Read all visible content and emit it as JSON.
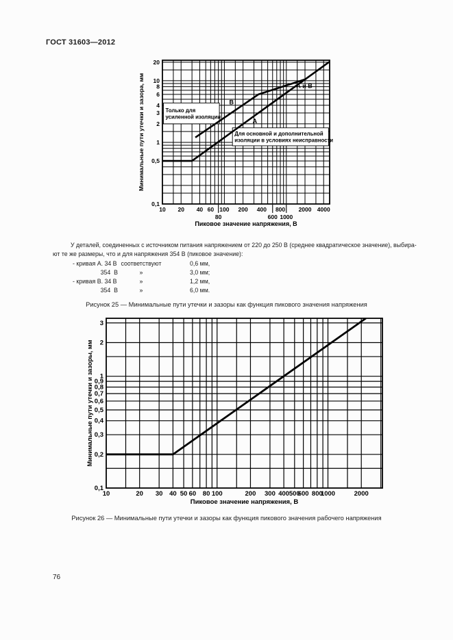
{
  "page": {
    "header": "ГОСТ 31603—2012",
    "page_number": "76",
    "paragraph": {
      "line1": "У деталей, соединенных с источником питания напряжением от 220 до 250 В (среднее квадратическое значение), выбира-",
      "line2": "ют те же размеры, что и для напряжения 354 В (пиковое значение):"
    },
    "list": [
      {
        "c1": "- кривая А. 34 В",
        "c2": "соответствуют",
        "c3": "0,6 мм,"
      },
      {
        "c1": "354  В",
        "c2": "»",
        "c3": "3,0 мм;"
      },
      {
        "c1": "- кривая В. 34 В",
        "c2": "»",
        "c3": "1,2 мм,"
      },
      {
        "c1": "354  В",
        "c2": "»",
        "c3": "6,0 мм."
      }
    ],
    "figure25_caption": "Рисунок 25 — Минимальные пути утечки и зазоры как функция пикового значения напряжения",
    "figure26_caption": "Рисунок 26 — Минимальные пути утечки и зазоры как функция пикового значения рабочего напряжения"
  },
  "chart_data": [
    {
      "type": "line",
      "title": "",
      "xlabel": "Пиковое значение напряжения, В",
      "ylabel": "Минимальные пути утечки и зазора, мм",
      "x_scale": "log",
      "y_scale": "log",
      "xlim": [
        10,
        5000
      ],
      "ylim": [
        0.1,
        21.5
      ],
      "grid": true,
      "x_ticks": [
        [
          10,
          "10",
          1
        ],
        [
          20,
          "20",
          1
        ],
        [
          40,
          "40",
          1
        ],
        [
          60,
          "60",
          1
        ],
        [
          80,
          "80",
          2
        ],
        [
          100,
          "100",
          1
        ],
        [
          200,
          "200",
          1
        ],
        [
          400,
          "400",
          1
        ],
        [
          600,
          "600",
          2
        ],
        [
          800,
          "800",
          1
        ],
        [
          1000,
          "1000",
          2
        ],
        [
          2000,
          "2000",
          1
        ],
        [
          4000,
          "4000",
          1
        ]
      ],
      "y_ticks": [
        [
          20,
          "20"
        ],
        [
          10,
          "10"
        ],
        [
          8,
          "8"
        ],
        [
          6,
          "6"
        ],
        [
          4,
          "4"
        ],
        [
          3,
          "3"
        ],
        [
          2,
          "2"
        ],
        [
          1,
          "1"
        ],
        [
          0.5,
          "0,5"
        ],
        [
          0.1,
          "0,1"
        ]
      ],
      "series": [
        {
          "name": "А",
          "points": [
            [
              10,
              0.5
            ],
            [
              30,
              0.5
            ],
            [
              354,
              3.0
            ],
            [
              2000,
              10.5
            ],
            [
              5000,
              20.4
            ]
          ]
        },
        {
          "name": "В",
          "points": [
            [
              34,
              1.2
            ],
            [
              354,
              6.0
            ],
            [
              2000,
              10.5
            ]
          ]
        }
      ],
      "labels": [
        {
          "x": 130,
          "y": 4.15,
          "text": "В"
        },
        {
          "x": 310,
          "y": 2.05,
          "text": "А"
        },
        {
          "x": 1950,
          "y": 7.6,
          "text": "А и В"
        }
      ],
      "boxes": [
        {
          "x": [
            10.4,
            83
          ],
          "y": [
            2.0,
            4.35
          ],
          "lines": [
            "Только для",
            "усиленной изоляции"
          ]
        },
        {
          "x": [
            135,
            4800
          ],
          "y": [
            0.88,
            1.72
          ],
          "lines": [
            "Для основной и дополнительной",
            "изоляции в условиях неисправности"
          ]
        }
      ]
    },
    {
      "type": "line",
      "title": "",
      "xlabel": "Пиковое значение напряжения, В",
      "ylabel": "Минимальные пути утечки и зазоры, мм",
      "x_scale": "log",
      "y_scale": "log",
      "xlim": [
        10,
        3100
      ],
      "ylim": [
        0.1,
        3.3
      ],
      "grid": true,
      "x_ticks": [
        [
          10,
          "10",
          1
        ],
        [
          20,
          "20",
          1
        ],
        [
          30,
          "30",
          1
        ],
        [
          40,
          "40",
          1
        ],
        [
          50,
          "50",
          1
        ],
        [
          60,
          "60",
          1
        ],
        [
          80,
          "80",
          1
        ],
        [
          100,
          "100",
          1
        ],
        [
          200,
          "200",
          1
        ],
        [
          300,
          "300",
          1
        ],
        [
          400,
          "400",
          1
        ],
        [
          500,
          "500",
          1
        ],
        [
          600,
          "600",
          1
        ],
        [
          800,
          "800",
          1
        ],
        [
          1000,
          "1000",
          1
        ],
        [
          2000,
          "2000",
          1
        ]
      ],
      "y_ticks": [
        [
          3,
          "3"
        ],
        [
          2,
          "2"
        ],
        [
          1,
          "1"
        ],
        [
          0.9,
          "0,9"
        ],
        [
          0.8,
          "0,8"
        ],
        [
          0.7,
          "0,7"
        ],
        [
          0.6,
          "0,6"
        ],
        [
          0.5,
          "0,5"
        ],
        [
          0.4,
          "0,4"
        ],
        [
          0.3,
          "0,3"
        ],
        [
          0.2,
          "0,2"
        ],
        [
          0.1,
          "0,1"
        ]
      ],
      "series": [
        {
          "name": "",
          "points": [
            [
              10,
              0.2
            ],
            [
              40,
              0.2
            ],
            [
              2200,
              3.3
            ]
          ]
        }
      ],
      "labels": [],
      "boxes": []
    }
  ]
}
